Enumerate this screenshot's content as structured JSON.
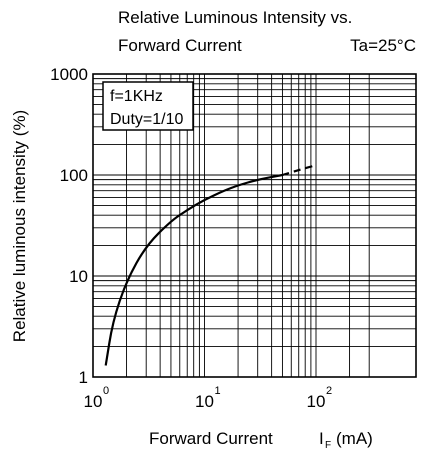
{
  "chart_data": {
    "type": "line",
    "title": "Relative Luminous Intensity vs.",
    "title_line2": "Forward Current",
    "condition": "Ta=25°C",
    "xlabel": "Forward Current",
    "xlabel_symbol": "I",
    "xlabel_subscript": "F",
    "xlabel_unit": "(mA)",
    "ylabel": "Relative luminous intensity (%)",
    "x_scale": "log",
    "y_scale": "log",
    "xlim": [
      1,
      400
    ],
    "ylim": [
      1,
      1000
    ],
    "x_ticks": [
      {
        "base": "10",
        "exp": "0"
      },
      {
        "base": "10",
        "exp": "1"
      },
      {
        "base": "10",
        "exp": "2"
      }
    ],
    "y_ticks": [
      "1",
      "10",
      "100",
      "1000"
    ],
    "grid": true,
    "legend_box": [
      "f=1KHz",
      "Duty=1/10"
    ],
    "legend_placement": "top-left",
    "series": [
      {
        "style": "solid",
        "x": [
          1.3,
          1.5,
          2,
          3,
          5,
          7,
          10,
          15,
          20,
          30,
          50
        ],
        "y": [
          1.3,
          3.5,
          9,
          20,
          35,
          45,
          57,
          70,
          79,
          90,
          100
        ]
      },
      {
        "style": "dashed",
        "x": [
          50,
          70,
          100
        ],
        "y": [
          100,
          112,
          125
        ]
      }
    ]
  }
}
